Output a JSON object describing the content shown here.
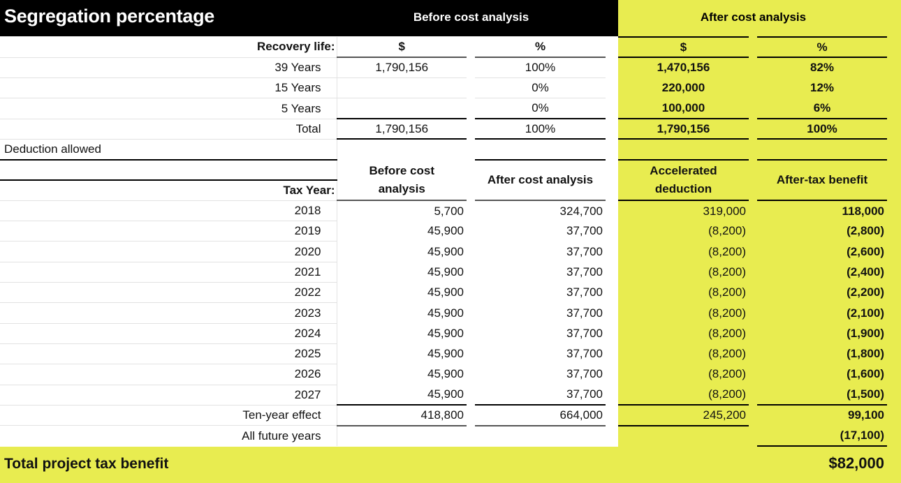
{
  "title": "Segregation percentage",
  "header": {
    "before": "Before cost analysis",
    "after": "After cost analysis"
  },
  "segregation": {
    "label": "Recovery life:",
    "col_headers": [
      "$",
      "%",
      "$",
      "%"
    ],
    "rows": [
      {
        "label": "39 Years",
        "before_amt": "1,790,156",
        "before_pct": "100%",
        "after_amt": "1,470,156",
        "after_pct": "82%"
      },
      {
        "label": "15 Years",
        "before_amt": "",
        "before_pct": "0%",
        "after_amt": "220,000",
        "after_pct": "12%"
      },
      {
        "label": "5 Years",
        "before_amt": "",
        "before_pct": "0%",
        "after_amt": "100,000",
        "after_pct": "6%"
      },
      {
        "label": "Total",
        "before_amt": "1,790,156",
        "before_pct": "100%",
        "after_amt": "1,790,156",
        "after_pct": "100%"
      }
    ]
  },
  "deduction": {
    "section_label": "Deduction allowed",
    "year_label": "Tax Year:",
    "col_headers": [
      "Before cost analysis",
      "After cost analysis",
      "Accelerated deduction",
      "After-tax benefit"
    ],
    "rows": [
      {
        "year": "2018",
        "before": "5,700",
        "after": "324,700",
        "accel": "319,000",
        "benefit": "118,000"
      },
      {
        "year": "2019",
        "before": "45,900",
        "after": "37,700",
        "accel": "(8,200)",
        "benefit": "(2,800)"
      },
      {
        "year": "2020",
        "before": "45,900",
        "after": "37,700",
        "accel": "(8,200)",
        "benefit": "(2,600)"
      },
      {
        "year": "2021",
        "before": "45,900",
        "after": "37,700",
        "accel": "(8,200)",
        "benefit": "(2,400)"
      },
      {
        "year": "2022",
        "before": "45,900",
        "after": "37,700",
        "accel": "(8,200)",
        "benefit": "(2,200)"
      },
      {
        "year": "2023",
        "before": "45,900",
        "after": "37,700",
        "accel": "(8,200)",
        "benefit": "(2,100)"
      },
      {
        "year": "2024",
        "before": "45,900",
        "after": "37,700",
        "accel": "(8,200)",
        "benefit": "(1,900)"
      },
      {
        "year": "2025",
        "before": "45,900",
        "after": "37,700",
        "accel": "(8,200)",
        "benefit": "(1,800)"
      },
      {
        "year": "2026",
        "before": "45,900",
        "after": "37,700",
        "accel": "(8,200)",
        "benefit": "(1,600)"
      },
      {
        "year": "2027",
        "before": "45,900",
        "after": "37,700",
        "accel": "(8,200)",
        "benefit": "(1,500)"
      }
    ],
    "ten_year": {
      "label": "Ten-year effect",
      "before": "418,800",
      "after": "664,000",
      "accel": "245,200",
      "benefit": "99,100"
    },
    "future": {
      "label": "All future years",
      "benefit": "(17,100)"
    }
  },
  "total": {
    "label": "Total project tax benefit",
    "value": "$82,000"
  },
  "colors": {
    "accent_yellow": "#e8ec50",
    "header_black": "#000000"
  }
}
